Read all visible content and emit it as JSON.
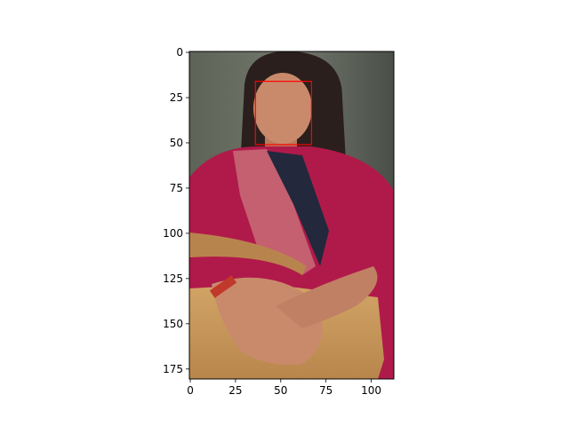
{
  "figure": {
    "image_description_icon": "person-photo",
    "axes": {
      "x_ticks": [
        0,
        25,
        50,
        75,
        100
      ],
      "y_ticks": [
        0,
        25,
        50,
        75,
        100,
        125,
        150,
        175
      ],
      "x_range": [
        -0.5,
        112.5
      ],
      "y_range": [
        180.5,
        -0.5
      ]
    },
    "annotation": {
      "type": "bounding-box",
      "label": "face",
      "x_min": 36,
      "y_min": 16,
      "x_max": 67,
      "y_max": 51,
      "color": "#ff0000"
    }
  },
  "colors": {
    "background": "#ffffff",
    "wall": "#6f7468",
    "top": "#b01a4a",
    "skin": "#c98a6c",
    "hair": "#2a1f1c",
    "bag": "#c89a5c"
  }
}
